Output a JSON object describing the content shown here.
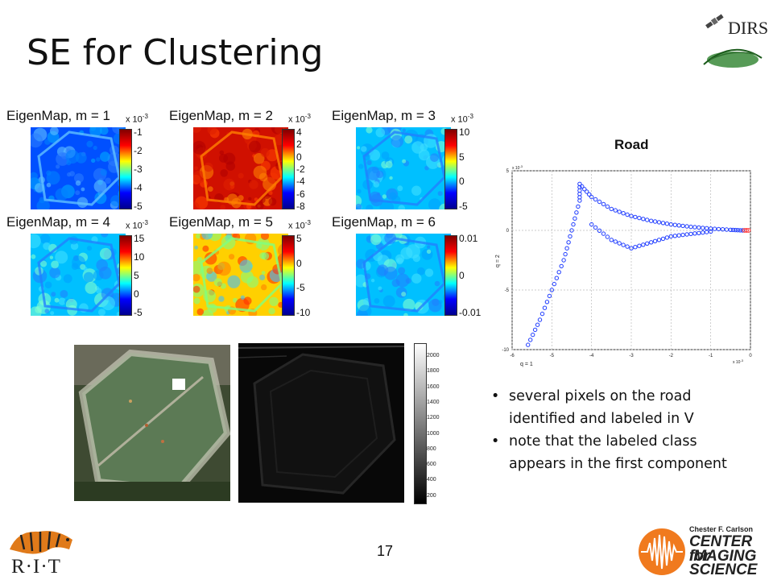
{
  "slide": {
    "title": "SE for Clustering",
    "page_number": "17"
  },
  "logos": {
    "dirs": "DIRS",
    "rit": "R·I·T",
    "cis_line1": "Chester F. Carlson",
    "cis_line2": "CENTER for",
    "cis_line3": "IMAGING",
    "cis_line4": "SCIENCE"
  },
  "eigenmaps": [
    {
      "title": "EigenMap, m = 1",
      "scale": "x 10",
      "exp": "-3",
      "ticks": [
        "-1",
        "-2",
        "-3",
        "-4",
        "-5"
      ],
      "dominant": "blue"
    },
    {
      "title": "EigenMap, m = 2",
      "scale": "x 10",
      "exp": "-3",
      "ticks": [
        "4",
        "2",
        "0",
        "-2",
        "-4",
        "-6",
        "-8"
      ],
      "dominant": "red"
    },
    {
      "title": "EigenMap, m = 3",
      "scale": "x 10",
      "exp": "-3",
      "ticks": [
        "10",
        "5",
        "0",
        "-5"
      ],
      "dominant": "cyan"
    },
    {
      "title": "EigenMap, m = 4",
      "scale": "x 10",
      "exp": "-3",
      "ticks": [
        "15",
        "10",
        "5",
        "0",
        "-5"
      ],
      "dominant": "cyan"
    },
    {
      "title": "EigenMap, m = 5",
      "scale": "x 10",
      "exp": "-3",
      "ticks": [
        "5",
        "0",
        "-5",
        "-10"
      ],
      "dominant": "yellow"
    },
    {
      "title": "EigenMap, m = 6",
      "scale": "",
      "exp": "",
      "ticks": [
        "0.01",
        "0",
        "-0.01"
      ],
      "dominant": "cyan"
    }
  ],
  "road": {
    "title": "Road",
    "xlabel": "q = 1",
    "ylabel": "q = 2",
    "x_scale": "x 10",
    "x_exp": "-3",
    "y_scale": "x 10",
    "y_exp": "-3"
  },
  "chart_data": {
    "type": "scatter",
    "title": "Road",
    "xlabel": "q = 1",
    "ylabel": "q = 2",
    "xlim": [
      -6,
      0
    ],
    "ylim": [
      -10,
      5
    ],
    "xticks": [
      -6,
      -5,
      -4,
      -3,
      -2,
      -1,
      0
    ],
    "yticks": [
      5,
      0,
      -5,
      -10
    ],
    "grid": true,
    "series": [
      {
        "color": "#1f3cff",
        "points": [
          [
            -5.6,
            -9.6
          ],
          [
            -5.3,
            -7.5
          ],
          [
            -5.0,
            -5.0
          ],
          [
            -4.7,
            -2.5
          ],
          [
            -4.5,
            0.0
          ],
          [
            -4.3,
            2.5
          ],
          [
            -4.3,
            3.9
          ],
          [
            -4.0,
            2.8
          ],
          [
            -3.5,
            1.8
          ],
          [
            -3.0,
            1.2
          ],
          [
            -2.5,
            0.8
          ],
          [
            -2.0,
            0.5
          ],
          [
            -1.5,
            0.3
          ],
          [
            -1.0,
            0.15
          ],
          [
            -0.5,
            0.05
          ],
          [
            -0.2,
            0.0
          ],
          [
            -4.0,
            0.5
          ],
          [
            -3.5,
            -0.8
          ],
          [
            -3.0,
            -1.5
          ],
          [
            -2.5,
            -1.0
          ],
          [
            -2.0,
            -0.5
          ],
          [
            -1.5,
            -0.3
          ],
          [
            -1.0,
            -0.1
          ]
        ]
      },
      {
        "color": "#ff3030",
        "points": [
          [
            -0.15,
            0.0
          ],
          [
            -0.1,
            0.0
          ],
          [
            -0.05,
            0.0
          ]
        ]
      }
    ]
  },
  "bullets": [
    "several pixels on the road identified and labeled in V",
    "note that the labeled class appears in the first component"
  ],
  "gray_colorbar": {
    "ticks": [
      "2000",
      "1800",
      "1600",
      "1400",
      "1200",
      "1000",
      "800",
      "600",
      "400",
      "200"
    ]
  },
  "colors": {
    "jet_gradient": "linear-gradient(to top,#00008f,#0000ff,#00ffff,#ffff00,#ff0000,#800000)"
  }
}
